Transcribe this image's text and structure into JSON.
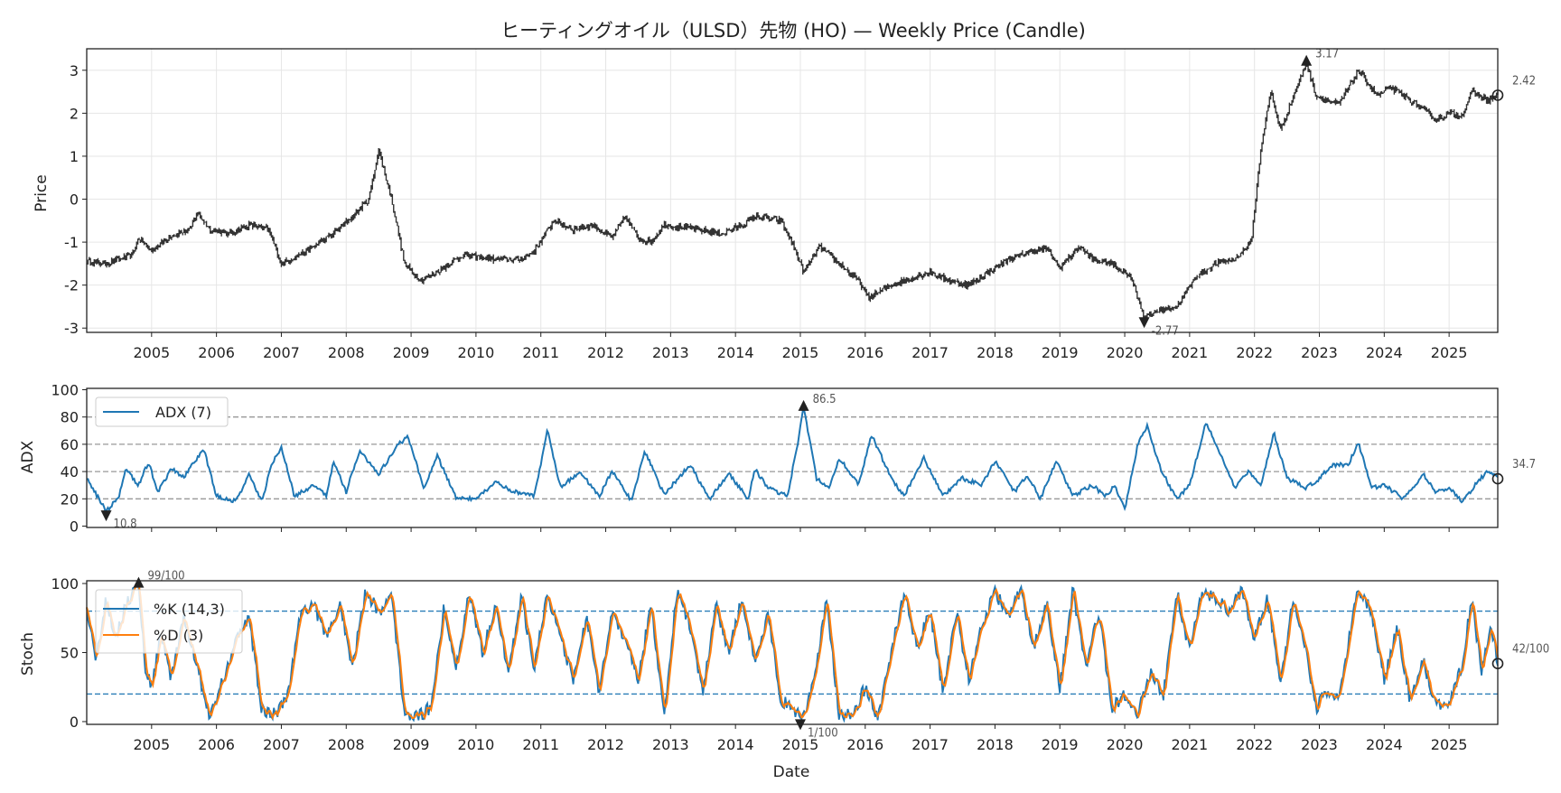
{
  "chart_data": [
    {
      "type": "candlestick",
      "title": "ヒーティングオイル（ULSD）先物 (HO) — Weekly Price (Candle)",
      "xlabel": "",
      "ylabel": "Price",
      "x_range": [
        2004.0,
        2025.75
      ],
      "ylim": [
        -3.1,
        3.5
      ],
      "yticks": [
        "-3",
        "-2",
        "-1",
        "0",
        "1",
        "2",
        "3"
      ],
      "xticks": [
        "2005",
        "2006",
        "2007",
        "2008",
        "2009",
        "2010",
        "2011",
        "2012",
        "2013",
        "2014",
        "2015",
        "2016",
        "2017",
        "2018",
        "2019",
        "2020",
        "2021",
        "2022",
        "2023",
        "2024",
        "2025"
      ],
      "series_color": "#333333",
      "keypoints": [
        [
          2004.0,
          -1.45
        ],
        [
          2004.3,
          -1.5
        ],
        [
          2004.7,
          -1.3
        ],
        [
          2004.8,
          -0.9
        ],
        [
          2005.0,
          -1.2
        ],
        [
          2005.3,
          -0.85
        ],
        [
          2005.6,
          -0.7
        ],
        [
          2005.7,
          -0.3
        ],
        [
          2005.9,
          -0.7
        ],
        [
          2006.2,
          -0.8
        ],
        [
          2006.5,
          -0.6
        ],
        [
          2006.8,
          -0.7
        ],
        [
          2007.0,
          -1.5
        ],
        [
          2007.4,
          -1.2
        ],
        [
          2007.8,
          -0.8
        ],
        [
          2008.1,
          -0.4
        ],
        [
          2008.35,
          0.0
        ],
        [
          2008.5,
          1.15
        ],
        [
          2008.7,
          0.0
        ],
        [
          2008.9,
          -1.5
        ],
        [
          2009.15,
          -1.9
        ],
        [
          2009.5,
          -1.6
        ],
        [
          2009.8,
          -1.3
        ],
        [
          2010.3,
          -1.4
        ],
        [
          2010.7,
          -1.4
        ],
        [
          2010.9,
          -1.2
        ],
        [
          2011.2,
          -0.5
        ],
        [
          2011.5,
          -0.7
        ],
        [
          2011.8,
          -0.6
        ],
        [
          2012.1,
          -0.9
        ],
        [
          2012.3,
          -0.4
        ],
        [
          2012.5,
          -0.9
        ],
        [
          2012.7,
          -1.0
        ],
        [
          2012.9,
          -0.6
        ],
        [
          2013.4,
          -0.7
        ],
        [
          2013.8,
          -0.8
        ],
        [
          2014.1,
          -0.6
        ],
        [
          2014.3,
          -0.4
        ],
        [
          2014.7,
          -0.5
        ],
        [
          2014.9,
          -1.1
        ],
        [
          2015.05,
          -1.7
        ],
        [
          2015.3,
          -1.1
        ],
        [
          2015.6,
          -1.5
        ],
        [
          2015.9,
          -1.9
        ],
        [
          2016.05,
          -2.3
        ],
        [
          2016.4,
          -2.0
        ],
        [
          2016.8,
          -1.8
        ],
        [
          2017.0,
          -1.7
        ],
        [
          2017.3,
          -1.9
        ],
        [
          2017.6,
          -2.0
        ],
        [
          2017.9,
          -1.7
        ],
        [
          2018.2,
          -1.4
        ],
        [
          2018.6,
          -1.2
        ],
        [
          2018.8,
          -1.15
        ],
        [
          2019.0,
          -1.6
        ],
        [
          2019.3,
          -1.1
        ],
        [
          2019.5,
          -1.4
        ],
        [
          2019.8,
          -1.5
        ],
        [
          2020.1,
          -1.8
        ],
        [
          2020.3,
          -2.77
        ],
        [
          2020.5,
          -2.6
        ],
        [
          2020.8,
          -2.5
        ],
        [
          2021.1,
          -1.8
        ],
        [
          2021.4,
          -1.5
        ],
        [
          2021.7,
          -1.4
        ],
        [
          2021.95,
          -1.0
        ],
        [
          2022.1,
          1.2
        ],
        [
          2022.25,
          2.5
        ],
        [
          2022.4,
          1.6
        ],
        [
          2022.6,
          2.4
        ],
        [
          2022.8,
          3.17
        ],
        [
          2022.95,
          2.4
        ],
        [
          2023.3,
          2.2
        ],
        [
          2023.6,
          3.0
        ],
        [
          2023.9,
          2.4
        ],
        [
          2024.1,
          2.6
        ],
        [
          2024.4,
          2.3
        ],
        [
          2024.6,
          2.1
        ],
        [
          2024.8,
          1.85
        ],
        [
          2025.0,
          2.0
        ],
        [
          2025.2,
          1.95
        ],
        [
          2025.35,
          2.5
        ],
        [
          2025.6,
          2.3
        ],
        [
          2025.75,
          2.42
        ]
      ],
      "max": {
        "x": 2022.8,
        "value": 3.17,
        "label": "3.17"
      },
      "min": {
        "x": 2020.3,
        "value": -2.77,
        "label": "-2.77"
      },
      "last": {
        "x": 2025.75,
        "value": 2.42,
        "label": "2.42"
      }
    },
    {
      "type": "line",
      "ylabel": "ADX",
      "ylim": [
        -1,
        101
      ],
      "yticks": [
        "0",
        "20",
        "40",
        "60",
        "80",
        "100"
      ],
      "hlines": [
        20,
        40,
        60,
        80
      ],
      "series": [
        {
          "name": "ADX (7)",
          "color": "#1f77b4"
        }
      ],
      "keypoints": [
        [
          2004.0,
          35
        ],
        [
          2004.3,
          10.8
        ],
        [
          2004.5,
          22
        ],
        [
          2004.6,
          42
        ],
        [
          2004.8,
          30
        ],
        [
          2004.95,
          47
        ],
        [
          2005.1,
          25
        ],
        [
          2005.3,
          42
        ],
        [
          2005.5,
          36
        ],
        [
          2005.8,
          57
        ],
        [
          2006.0,
          22
        ],
        [
          2006.3,
          18
        ],
        [
          2006.5,
          38
        ],
        [
          2006.7,
          18
        ],
        [
          2006.85,
          45
        ],
        [
          2007.0,
          58
        ],
        [
          2007.2,
          22
        ],
        [
          2007.5,
          30
        ],
        [
          2007.7,
          22
        ],
        [
          2007.8,
          48
        ],
        [
          2008.0,
          25
        ],
        [
          2008.2,
          55
        ],
        [
          2008.5,
          38
        ],
        [
          2008.8,
          60
        ],
        [
          2008.95,
          65
        ],
        [
          2009.2,
          28
        ],
        [
          2009.4,
          52
        ],
        [
          2009.7,
          20
        ],
        [
          2010.0,
          20
        ],
        [
          2010.3,
          32
        ],
        [
          2010.6,
          25
        ],
        [
          2010.9,
          22
        ],
        [
          2011.1,
          70
        ],
        [
          2011.3,
          28
        ],
        [
          2011.6,
          40
        ],
        [
          2011.9,
          22
        ],
        [
          2012.1,
          40
        ],
        [
          2012.4,
          18
        ],
        [
          2012.6,
          55
        ],
        [
          2012.9,
          23
        ],
        [
          2013.3,
          45
        ],
        [
          2013.6,
          20
        ],
        [
          2013.9,
          38
        ],
        [
          2014.2,
          20
        ],
        [
          2014.3,
          42
        ],
        [
          2014.5,
          28
        ],
        [
          2014.8,
          22
        ],
        [
          2014.95,
          58
        ],
        [
          2015.05,
          86.5
        ],
        [
          2015.25,
          35
        ],
        [
          2015.45,
          28
        ],
        [
          2015.6,
          50
        ],
        [
          2015.9,
          30
        ],
        [
          2016.1,
          67
        ],
        [
          2016.4,
          35
        ],
        [
          2016.6,
          22
        ],
        [
          2016.9,
          50
        ],
        [
          2017.2,
          22
        ],
        [
          2017.5,
          35
        ],
        [
          2017.8,
          30
        ],
        [
          2018.0,
          48
        ],
        [
          2018.3,
          25
        ],
        [
          2018.5,
          37
        ],
        [
          2018.7,
          20
        ],
        [
          2018.95,
          48
        ],
        [
          2019.2,
          22
        ],
        [
          2019.5,
          30
        ],
        [
          2019.7,
          22
        ],
        [
          2019.85,
          30
        ],
        [
          2020.0,
          12
        ],
        [
          2020.2,
          60
        ],
        [
          2020.35,
          74
        ],
        [
          2020.55,
          42
        ],
        [
          2020.8,
          20
        ],
        [
          2021.0,
          30
        ],
        [
          2021.25,
          76
        ],
        [
          2021.5,
          50
        ],
        [
          2021.7,
          28
        ],
        [
          2021.9,
          40
        ],
        [
          2022.1,
          30
        ],
        [
          2022.3,
          68
        ],
        [
          2022.5,
          35
        ],
        [
          2022.8,
          28
        ],
        [
          2023.0,
          35
        ],
        [
          2023.2,
          45
        ],
        [
          2023.45,
          45
        ],
        [
          2023.6,
          62
        ],
        [
          2023.8,
          28
        ],
        [
          2024.0,
          30
        ],
        [
          2024.3,
          20
        ],
        [
          2024.6,
          38
        ],
        [
          2024.8,
          25
        ],
        [
          2025.0,
          28
        ],
        [
          2025.2,
          18
        ],
        [
          2025.4,
          30
        ],
        [
          2025.6,
          41
        ],
        [
          2025.75,
          34.7
        ]
      ],
      "max": {
        "x": 2015.05,
        "value": 86.5,
        "label": "86.5"
      },
      "min": {
        "x": 2004.3,
        "value": 10.8,
        "label": "10.8"
      },
      "last": {
        "x": 2025.75,
        "value": 34.7,
        "label": "34.7"
      }
    },
    {
      "type": "line",
      "xlabel": "Date",
      "ylabel": "Stoch",
      "ylim": [
        -2,
        102
      ],
      "yticks": [
        "0",
        "50",
        "100"
      ],
      "xticks": [
        "2005",
        "2006",
        "2007",
        "2008",
        "2009",
        "2010",
        "2011",
        "2012",
        "2013",
        "2014",
        "2015",
        "2016",
        "2017",
        "2018",
        "2019",
        "2020",
        "2021",
        "2022",
        "2023",
        "2024",
        "2025"
      ],
      "hlines": [
        20,
        80
      ],
      "hline_color": "#1f77b4",
      "series": [
        {
          "name": "%K (14,3)",
          "color": "#1f77b4"
        },
        {
          "name": "%D (3)",
          "color": "#ff7f0e"
        }
      ],
      "keypoints": [
        [
          2004.0,
          80
        ],
        [
          2004.15,
          45
        ],
        [
          2004.3,
          90
        ],
        [
          2004.45,
          60
        ],
        [
          2004.6,
          85
        ],
        [
          2004.8,
          99
        ],
        [
          2004.9,
          40
        ],
        [
          2005.0,
          25
        ],
        [
          2005.15,
          65
        ],
        [
          2005.3,
          30
        ],
        [
          2005.5,
          75
        ],
        [
          2005.7,
          40
        ],
        [
          2005.9,
          3
        ],
        [
          2006.1,
          30
        ],
        [
          2006.3,
          60
        ],
        [
          2006.5,
          75
        ],
        [
          2006.7,
          8
        ],
        [
          2006.9,
          5
        ],
        [
          2007.1,
          20
        ],
        [
          2007.3,
          80
        ],
        [
          2007.5,
          85
        ],
        [
          2007.7,
          60
        ],
        [
          2007.9,
          85
        ],
        [
          2008.1,
          40
        ],
        [
          2008.3,
          95
        ],
        [
          2008.5,
          80
        ],
        [
          2008.7,
          90
        ],
        [
          2008.9,
          5
        ],
        [
          2009.1,
          3
        ],
        [
          2009.3,
          10
        ],
        [
          2009.5,
          80
        ],
        [
          2009.7,
          40
        ],
        [
          2009.9,
          95
        ],
        [
          2010.1,
          50
        ],
        [
          2010.3,
          85
        ],
        [
          2010.5,
          35
        ],
        [
          2010.7,
          90
        ],
        [
          2010.9,
          40
        ],
        [
          2011.1,
          95
        ],
        [
          2011.3,
          60
        ],
        [
          2011.5,
          30
        ],
        [
          2011.7,
          75
        ],
        [
          2011.9,
          20
        ],
        [
          2012.1,
          80
        ],
        [
          2012.3,
          60
        ],
        [
          2012.5,
          30
        ],
        [
          2012.7,
          85
        ],
        [
          2012.9,
          5
        ],
        [
          2013.1,
          95
        ],
        [
          2013.3,
          70
        ],
        [
          2013.5,
          20
        ],
        [
          2013.7,
          85
        ],
        [
          2013.9,
          50
        ],
        [
          2014.1,
          90
        ],
        [
          2014.3,
          40
        ],
        [
          2014.5,
          80
        ],
        [
          2014.7,
          15
        ],
        [
          2014.9,
          10
        ],
        [
          2015.0,
          1
        ],
        [
          2015.2,
          25
        ],
        [
          2015.4,
          90
        ],
        [
          2015.6,
          3
        ],
        [
          2015.8,
          5
        ],
        [
          2016.0,
          25
        ],
        [
          2016.2,
          3
        ],
        [
          2016.4,
          50
        ],
        [
          2016.6,
          92
        ],
        [
          2016.8,
          55
        ],
        [
          2017.0,
          80
        ],
        [
          2017.2,
          20
        ],
        [
          2017.4,
          80
        ],
        [
          2017.6,
          30
        ],
        [
          2017.8,
          70
        ],
        [
          2018.0,
          95
        ],
        [
          2018.2,
          75
        ],
        [
          2018.4,
          95
        ],
        [
          2018.6,
          55
        ],
        [
          2018.8,
          85
        ],
        [
          2019.0,
          25
        ],
        [
          2019.2,
          95
        ],
        [
          2019.4,
          40
        ],
        [
          2019.6,
          80
        ],
        [
          2019.8,
          10
        ],
        [
          2020.0,
          20
        ],
        [
          2020.2,
          5
        ],
        [
          2020.4,
          35
        ],
        [
          2020.6,
          20
        ],
        [
          2020.8,
          95
        ],
        [
          2021.0,
          50
        ],
        [
          2021.2,
          95
        ],
        [
          2021.4,
          90
        ],
        [
          2021.6,
          80
        ],
        [
          2021.8,
          95
        ],
        [
          2022.0,
          60
        ],
        [
          2022.2,
          90
        ],
        [
          2022.4,
          25
        ],
        [
          2022.6,
          90
        ],
        [
          2022.8,
          50
        ],
        [
          2022.95,
          10
        ],
        [
          2023.1,
          20
        ],
        [
          2023.3,
          18
        ],
        [
          2023.5,
          70
        ],
        [
          2023.6,
          97
        ],
        [
          2023.8,
          80
        ],
        [
          2024.0,
          30
        ],
        [
          2024.2,
          68
        ],
        [
          2024.4,
          15
        ],
        [
          2024.6,
          45
        ],
        [
          2024.8,
          10
        ],
        [
          2025.0,
          15
        ],
        [
          2025.2,
          40
        ],
        [
          2025.35,
          90
        ],
        [
          2025.5,
          35
        ],
        [
          2025.65,
          70
        ],
        [
          2025.75,
          42
        ]
      ],
      "max": {
        "x": 2004.8,
        "value": 99,
        "label": "99/100"
      },
      "min": {
        "x": 2015.0,
        "value": 1,
        "label": "1/100"
      },
      "last": {
        "x": 2025.75,
        "value": 42,
        "label": "42/100"
      }
    }
  ]
}
